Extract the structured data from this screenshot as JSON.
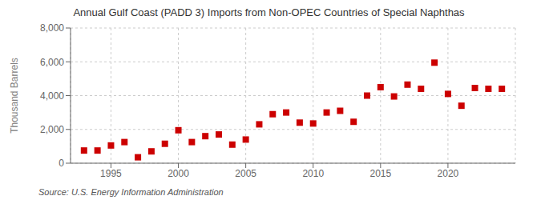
{
  "chart_data": {
    "type": "scatter",
    "title": "Annual Gulf Coast (PADD 3) Imports from Non-OPEC Countries of Special Naphthas",
    "ylabel": "Thousand Barrels",
    "annotations": [
      "Source: U.S. Energy Information Administration"
    ],
    "x": [
      1993,
      1994,
      1995,
      1996,
      1997,
      1998,
      1999,
      2000,
      2001,
      2002,
      2003,
      2004,
      2005,
      2006,
      2007,
      2008,
      2009,
      2010,
      2011,
      2012,
      2013,
      2014,
      2015,
      2016,
      2017,
      2018,
      2019,
      2020,
      2021,
      2022,
      2023,
      2024
    ],
    "values": [
      750,
      750,
      1050,
      1250,
      350,
      700,
      1150,
      1950,
      1250,
      1600,
      1700,
      1100,
      1400,
      2300,
      2900,
      3000,
      2400,
      2350,
      3000,
      3100,
      2450,
      4000,
      4500,
      3950,
      4650,
      4400,
      5950,
      4100,
      3400,
      4450,
      4400,
      4400
    ],
    "color": "#cc0000",
    "marker": "square",
    "xlim": [
      1992,
      2025
    ],
    "ylim": [
      0,
      8000
    ],
    "xticks": [
      1995,
      2000,
      2005,
      2010,
      2015,
      2020
    ],
    "yticks": [
      0,
      {
        "value": 2000,
        "label": "2,000"
      },
      {
        "value": 4000,
        "label": "4,000"
      },
      {
        "value": 6000,
        "label": "6,000"
      },
      {
        "value": 8000,
        "label": "8,000"
      }
    ],
    "grid": true
  }
}
